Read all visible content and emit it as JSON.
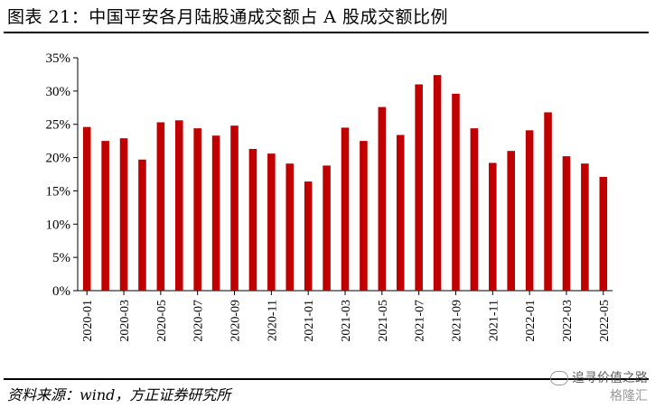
{
  "header": {
    "title": "图表 21：中国平安各月陆股通成交额占 A 股成交额比例"
  },
  "footer": {
    "source": "资料来源：wind，方正证券研究所",
    "watermark_line1": "追寻价值之路",
    "watermark_line2": "格隆汇"
  },
  "chart_data": {
    "type": "bar",
    "title": "",
    "xlabel": "",
    "ylabel": "",
    "ylim": [
      0,
      35
    ],
    "y_ticks": [
      0,
      5,
      10,
      15,
      20,
      25,
      30,
      35
    ],
    "y_tick_labels": [
      "0%",
      "5%",
      "10%",
      "15%",
      "20%",
      "25%",
      "30%",
      "35%"
    ],
    "categories": [
      "2020-01",
      "2020-02",
      "2020-03",
      "2020-04",
      "2020-05",
      "2020-06",
      "2020-07",
      "2020-08",
      "2020-09",
      "2020-10",
      "2020-11",
      "2020-12",
      "2021-01",
      "2021-02",
      "2021-03",
      "2021-04",
      "2021-05",
      "2021-06",
      "2021-07",
      "2021-08",
      "2021-09",
      "2021-10",
      "2021-11",
      "2021-12",
      "2022-01",
      "2022-02",
      "2022-03",
      "2022-04",
      "2022-05"
    ],
    "x_tick_labels": [
      "2020-01",
      "2020-03",
      "2020-05",
      "2020-07",
      "2020-09",
      "2020-11",
      "2021-01",
      "2021-03",
      "2021-05",
      "2021-07",
      "2021-09",
      "2021-11",
      "2022-01",
      "2022-03",
      "2022-05"
    ],
    "values": [
      24.6,
      22.5,
      22.9,
      19.7,
      25.3,
      25.6,
      24.4,
      23.3,
      24.8,
      21.3,
      20.6,
      19.1,
      16.4,
      18.8,
      24.5,
      22.5,
      27.6,
      23.4,
      31.0,
      32.4,
      29.6,
      24.4,
      19.2,
      21.0,
      24.1,
      26.8,
      20.2,
      19.1,
      17.1
    ],
    "bar_color": "#c00000",
    "grid": false,
    "legend": "none"
  }
}
